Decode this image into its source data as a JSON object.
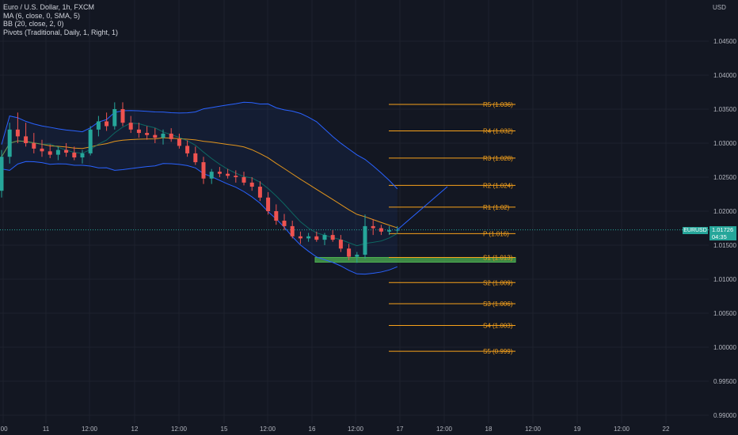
{
  "legend": {
    "title": "Euro / U.S. Dollar, 1h, FXCM",
    "ma": "MA (6, close, 0, SMA, 5)",
    "bb": "BB (20, close, 2, 0)",
    "pivots": "Pivots (Traditional, Daily, 1, Right, 1)"
  },
  "currency": "USD",
  "price_tag": {
    "symbol": "EURUSD",
    "price": "1.01726",
    "countdown": "04:35"
  },
  "colors": {
    "background": "#131722",
    "up": "#26a69a",
    "down": "#ef5350",
    "ma": "#f7a21b",
    "bb": "#2962ff",
    "pivot": "#f7a21b",
    "support_zone": "#4caf50"
  },
  "chart_data": {
    "type": "candlestick",
    "symbol": "EURUSD",
    "interval": "1h",
    "ylim": [
      0.99,
      1.05
    ],
    "y_ticks": [
      "1.04500",
      "1.04000",
      "1.03500",
      "1.03000",
      "1.02500",
      "1.02000",
      "1.01500",
      "1.01000",
      "1.00500",
      "1.00000",
      "0.99500",
      "0.99000"
    ],
    "x_ticks": [
      ":00",
      "11",
      "12:00",
      "12",
      "12:00",
      "15",
      "12:00",
      "16",
      "12:00",
      "17",
      "12:00",
      "18",
      "12:00",
      "19",
      "12:00",
      "22"
    ],
    "pivot_levels": [
      {
        "label": "R5 (1.036)",
        "value": 1.0357
      },
      {
        "label": "R4 (1.032)",
        "value": 1.0318
      },
      {
        "label": "R3 (1.028)",
        "value": 1.0278
      },
      {
        "label": "R2 (1.024)",
        "value": 1.0238
      },
      {
        "label": "R1 (1.02)",
        "value": 1.0206
      },
      {
        "label": "P (1.016)",
        "value": 1.0167
      },
      {
        "label": "S1 (1.013)",
        "value": 1.0132
      },
      {
        "label": "S2 (1.009)",
        "value": 1.0095
      },
      {
        "label": "S3 (1.006)",
        "value": 1.0064
      },
      {
        "label": "S4 (1.003)",
        "value": 1.0032
      },
      {
        "label": "S5 (0.999)",
        "value": 0.9994
      }
    ],
    "support_zone": [
      1.0125,
      1.0132
    ],
    "last_price": 1.01726,
    "projection": [
      [
        1.01726,
        1.0236
      ]
    ],
    "candles": [
      [
        1.023,
        1.029,
        1.022,
        1.028
      ],
      [
        1.028,
        1.033,
        1.027,
        1.032
      ],
      [
        1.032,
        1.0345,
        1.03,
        1.031
      ],
      [
        1.031,
        1.033,
        1.0295,
        1.03
      ],
      [
        1.03,
        1.0315,
        1.0285,
        1.0292
      ],
      [
        1.0292,
        1.0305,
        1.028,
        1.0288
      ],
      [
        1.0288,
        1.0298,
        1.0278,
        1.0283
      ],
      [
        1.0283,
        1.0295,
        1.0275,
        1.029
      ],
      [
        1.029,
        1.03,
        1.028,
        1.0286
      ],
      [
        1.0286,
        1.0295,
        1.0275,
        1.0279
      ],
      [
        1.0279,
        1.029,
        1.027,
        1.0285
      ],
      [
        1.0285,
        1.0325,
        1.0282,
        1.032
      ],
      [
        1.032,
        1.034,
        1.031,
        1.0332
      ],
      [
        1.0332,
        1.0345,
        1.0318,
        1.0325
      ],
      [
        1.0325,
        1.036,
        1.032,
        1.035
      ],
      [
        1.035,
        1.036,
        1.0325,
        1.033
      ],
      [
        1.033,
        1.034,
        1.0315,
        1.032
      ],
      [
        1.032,
        1.033,
        1.0308,
        1.0315
      ],
      [
        1.0315,
        1.0325,
        1.0305,
        1.0312
      ],
      [
        1.0312,
        1.0322,
        1.03,
        1.0308
      ],
      [
        1.0308,
        1.032,
        1.0298,
        1.0314
      ],
      [
        1.0314,
        1.0322,
        1.0302,
        1.0306
      ],
      [
        1.0306,
        1.0314,
        1.0292,
        1.0296
      ],
      [
        1.0296,
        1.0304,
        1.028,
        1.0285
      ],
      [
        1.0285,
        1.0295,
        1.0268,
        1.0272
      ],
      [
        1.0272,
        1.028,
        1.024,
        1.0248
      ],
      [
        1.0248,
        1.0262,
        1.024,
        1.0258
      ],
      [
        1.0258,
        1.0265,
        1.025,
        1.0255
      ],
      [
        1.0255,
        1.0262,
        1.0248,
        1.0252
      ],
      [
        1.0252,
        1.026,
        1.0242,
        1.025
      ],
      [
        1.025,
        1.0258,
        1.0238,
        1.0242
      ],
      [
        1.0242,
        1.025,
        1.023,
        1.0236
      ],
      [
        1.0236,
        1.0244,
        1.0215,
        1.022
      ],
      [
        1.022,
        1.0228,
        1.0195,
        1.02
      ],
      [
        1.02,
        1.021,
        1.018,
        1.0186
      ],
      [
        1.0186,
        1.0196,
        1.0172,
        1.0178
      ],
      [
        1.0178,
        1.0186,
        1.016,
        1.0163
      ],
      [
        1.0163,
        1.017,
        1.0152,
        1.016
      ],
      [
        1.016,
        1.0168,
        1.0155,
        1.0163
      ],
      [
        1.0163,
        1.017,
        1.0155,
        1.0158
      ],
      [
        1.0158,
        1.0168,
        1.015,
        1.0165
      ],
      [
        1.0165,
        1.0172,
        1.0155,
        1.0158
      ],
      [
        1.0158,
        1.0165,
        1.014,
        1.0145
      ],
      [
        1.0145,
        1.0152,
        1.0128,
        1.0133
      ],
      [
        1.0133,
        1.014,
        1.0124,
        1.0136
      ],
      [
        1.0136,
        1.0195,
        1.013,
        1.0178
      ],
      [
        1.0178,
        1.0188,
        1.0165,
        1.0175
      ],
      [
        1.0175,
        1.018,
        1.0165,
        1.017
      ],
      [
        1.017,
        1.0178,
        1.0165,
        1.0172
      ],
      [
        1.0172,
        1.0178,
        1.0168,
        1.01726
      ]
    ]
  }
}
